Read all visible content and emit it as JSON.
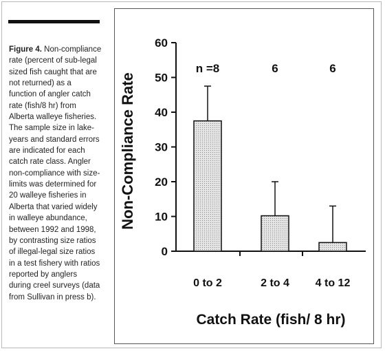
{
  "caption": {
    "label": "Figure 4.",
    "lines": [
      " Non-compliance",
      "rate (percent of sub-legal",
      "sized fish caught that are",
      "not returned) as a",
      "function of angler catch",
      "rate (fish/8 hr) from",
      "Alberta walleye fisheries.",
      "The sample size in lake-",
      "years and standard errors",
      "are indicated for each",
      "catch rate class. Angler",
      "non-compliance with size-",
      "limits was determined for",
      "20 walleye fisheries in",
      "Alberta that varied widely",
      "in walleye abundance,",
      "between 1992 and 1998,",
      "by contrasting size ratios",
      "of illegal-legal size ratios",
      "in a test fishery with ratios",
      "reported by anglers",
      "during creel surveys (data",
      "from Sullivan in press b)."
    ]
  },
  "chart_data": {
    "type": "bar",
    "categories": [
      "0 to 2",
      "2 to 4",
      "4 to 12"
    ],
    "values": [
      37.5,
      10.2,
      2.5
    ],
    "error_upper": [
      47.5,
      20,
      13
    ],
    "sample_sizes": [
      "n =8",
      "6",
      "6"
    ],
    "xlabel": "Catch Rate (fish/ 8 hr)",
    "ylabel": "Non-Compliance Rate",
    "ylim": [
      0,
      60
    ],
    "yticks": [
      0,
      10,
      20,
      30,
      40,
      50,
      60
    ],
    "grid": false,
    "legend": "none",
    "bar_fill": "#e4e4e4",
    "bar_stipple": "#8a8a8a",
    "ink": "#111111"
  }
}
